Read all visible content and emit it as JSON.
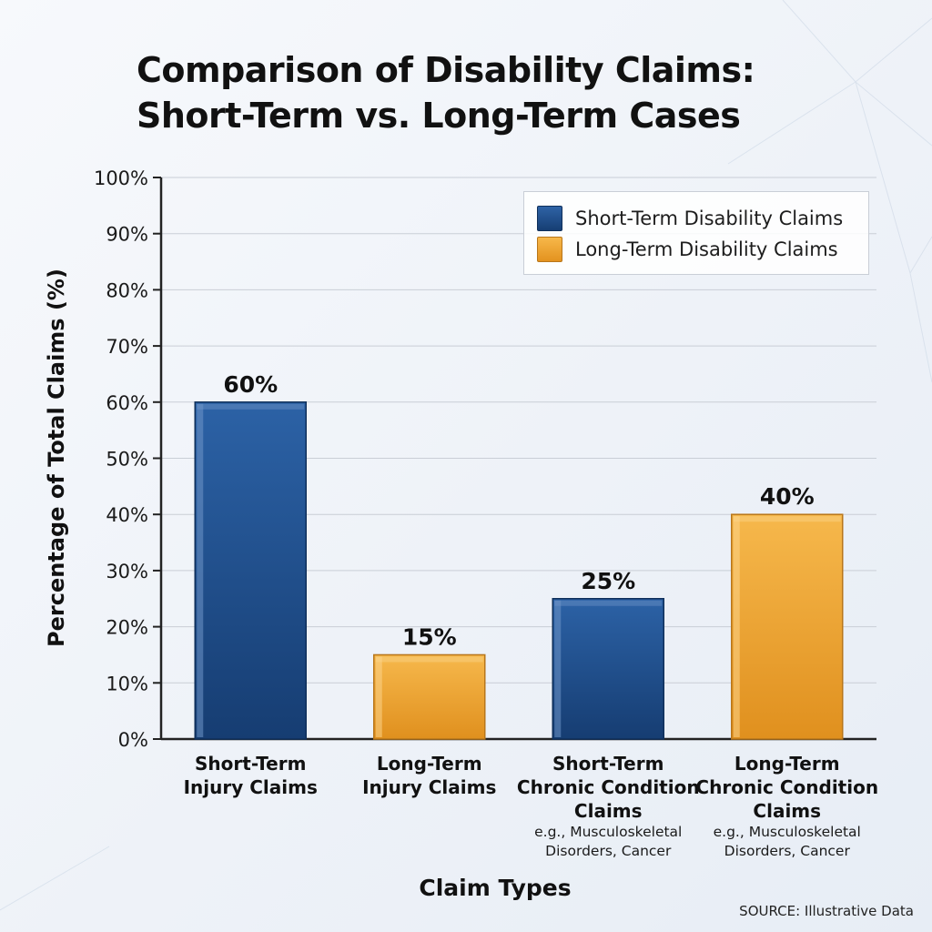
{
  "title_line1": "Comparison of Disability Claims:",
  "title_line2": "Short-Term vs. Long-Term Cases",
  "source": "SOURCE: Illustrative Data",
  "colors": {
    "short_term": "#1f4f8e",
    "long_term": "#f0a937"
  },
  "chart_data": {
    "type": "bar",
    "xlabel": "Claim Types",
    "ylabel": "Percentage of Total Claims (%)",
    "ylim": [
      0,
      100
    ],
    "yticks": [
      "0%",
      "10%",
      "20%",
      "30%",
      "40%",
      "50%",
      "60%",
      "70%",
      "80%",
      "90%",
      "100%"
    ],
    "grid": true,
    "legend_position": "top-right",
    "legend": [
      {
        "label": "Short-Term Disability Claims",
        "color": "#1f4f8e"
      },
      {
        "label": "Long-Term Disability Claims",
        "color": "#f0a937"
      }
    ],
    "categories": [
      {
        "lines": [
          "Short-Term",
          "Injury Claims"
        ],
        "note": []
      },
      {
        "lines": [
          "Long-Term",
          "Injury Claims"
        ],
        "note": []
      },
      {
        "lines": [
          "Short-Term",
          "Chronic Condition",
          "Claims"
        ],
        "note": [
          "e.g., Musculoskeletal",
          "Disorders, Cancer"
        ]
      },
      {
        "lines": [
          "Long-Term",
          "Chronic Condition",
          "Claims"
        ],
        "note": [
          "e.g., Musculoskeletal",
          "Disorders, Cancer"
        ]
      }
    ],
    "values": [
      60,
      15,
      25,
      40
    ],
    "value_labels": [
      "60%",
      "15%",
      "25%",
      "40%"
    ],
    "bar_series": [
      "Short-Term Disability Claims",
      "Long-Term Disability Claims",
      "Short-Term Disability Claims",
      "Long-Term Disability Claims"
    ]
  }
}
